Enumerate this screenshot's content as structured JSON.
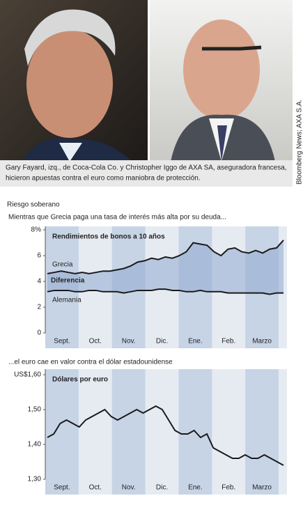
{
  "photo_caption": [
    "Gary Fayard, izq., de Coca-Cola Co. y Christopher Iggo de AXA SA, aseguradora francesa,",
    "hicieron apuestas contra el euro como maniobra de protección."
  ],
  "photo_credit": "Bloomberg News; AXA S.A.",
  "title": "Riesgo soberano",
  "chart_data": [
    {
      "type": "line",
      "subtitle": "Mientras que Grecia paga una tasa de interés más alta por su deuda...",
      "title": "Rendimientos de bonos a 10 años",
      "x_labels": [
        "Sept.",
        "Oct.",
        "Nov.",
        "Dic.",
        "Ene.",
        "Feb.",
        "Marzo"
      ],
      "ylim": [
        0,
        8
      ],
      "yticks": [
        0,
        2,
        4,
        6,
        {
          "value": 8,
          "label": "8%"
        }
      ],
      "annotation": "Diferencia",
      "series": [
        {
          "name": "Grecia",
          "color": "#1a1a1a",
          "values": [
            4.6,
            4.7,
            4.8,
            4.7,
            4.6,
            4.7,
            4.6,
            4.7,
            4.8,
            4.8,
            4.9,
            5.0,
            5.2,
            5.5,
            5.6,
            5.8,
            5.7,
            5.9,
            5.8,
            6.0,
            6.3,
            7.0,
            6.9,
            6.8,
            6.3,
            6.0,
            6.5,
            6.6,
            6.3,
            6.2,
            6.4,
            6.2,
            6.5,
            6.6,
            7.2
          ]
        },
        {
          "name": "Alemania",
          "color": "#1a1a1a",
          "values": [
            3.2,
            3.3,
            3.3,
            3.3,
            3.2,
            3.2,
            3.3,
            3.3,
            3.2,
            3.2,
            3.2,
            3.1,
            3.2,
            3.3,
            3.3,
            3.3,
            3.4,
            3.4,
            3.3,
            3.3,
            3.2,
            3.2,
            3.3,
            3.2,
            3.2,
            3.2,
            3.1,
            3.1,
            3.1,
            3.1,
            3.1,
            3.1,
            3.0,
            3.1,
            3.1
          ]
        }
      ]
    },
    {
      "type": "line",
      "subtitle": "...el euro cae en valor contra el dólar estadounidense",
      "title": "Dólares por euro",
      "x_labels": [
        "Sept.",
        "Oct.",
        "Nov.",
        "Dic.",
        "Ene.",
        "Feb.",
        "Marzo"
      ],
      "ylim": [
        1.3,
        1.6
      ],
      "yticks": [
        {
          "value": 1.3,
          "label": "1,30"
        },
        {
          "value": 1.4,
          "label": "1,40"
        },
        {
          "value": 1.5,
          "label": "1,50"
        },
        {
          "value": 1.6,
          "label": "US$1,60"
        }
      ],
      "series": [
        {
          "name": null,
          "color": "#1a1a1a",
          "values": [
            1.42,
            1.43,
            1.46,
            1.47,
            1.46,
            1.45,
            1.47,
            1.48,
            1.49,
            1.5,
            1.48,
            1.47,
            1.48,
            1.49,
            1.5,
            1.49,
            1.5,
            1.51,
            1.5,
            1.47,
            1.44,
            1.43,
            1.43,
            1.44,
            1.42,
            1.43,
            1.39,
            1.38,
            1.37,
            1.36,
            1.36,
            1.37,
            1.36,
            1.36,
            1.37,
            1.36,
            1.35,
            1.34
          ]
        }
      ]
    }
  ]
}
